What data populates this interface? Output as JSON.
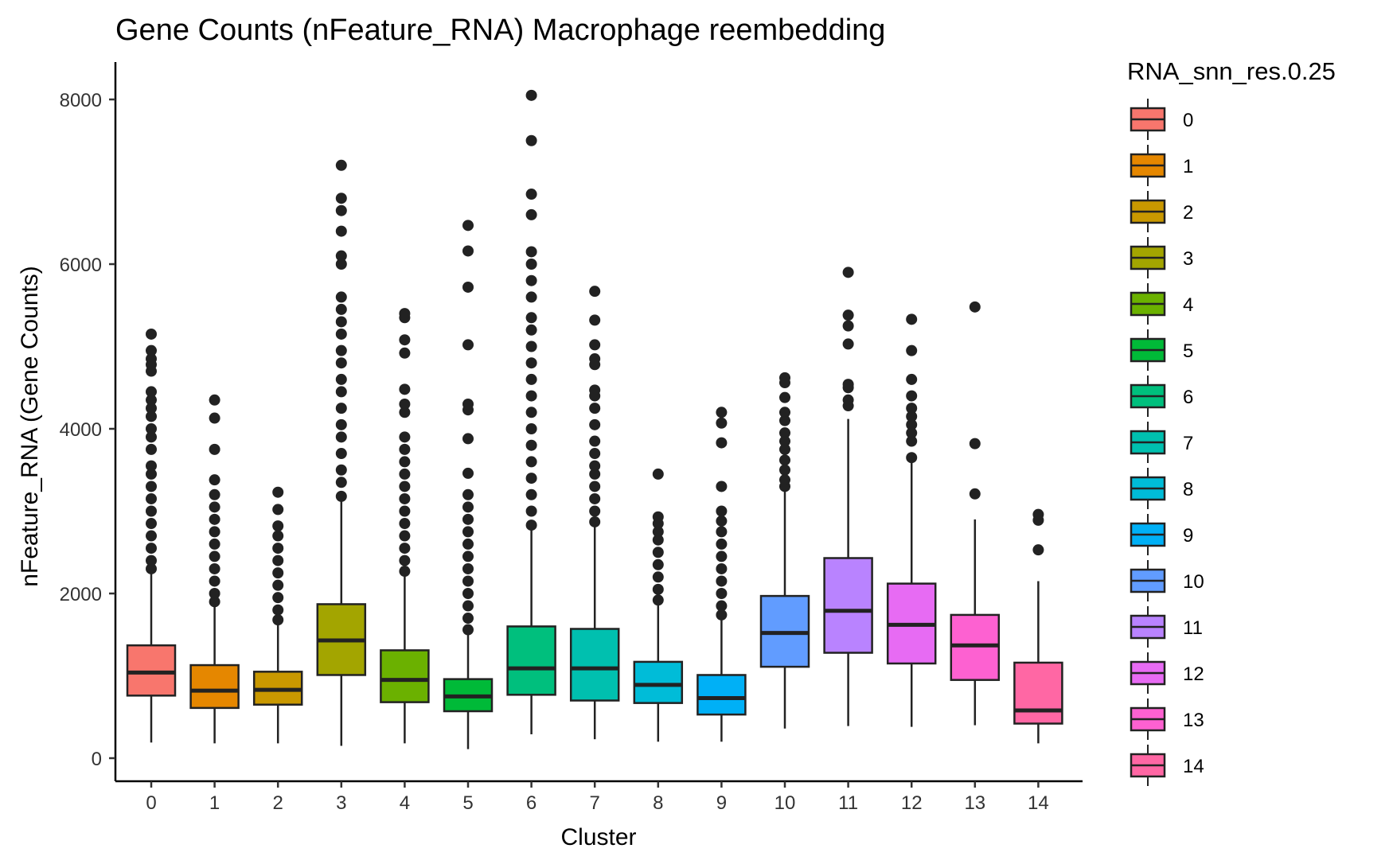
{
  "chart_data": {
    "type": "boxplot",
    "title": "Gene Counts (nFeature_RNA) Macrophage reembedding",
    "xlabel": "Cluster",
    "ylabel": "nFeature_RNA (Gene Counts)",
    "ylim": [
      -300,
      8400
    ],
    "yticks": [
      0,
      2000,
      4000,
      6000,
      8000
    ],
    "legend": {
      "title": "RNA_snn_res.0.25",
      "position": "right"
    },
    "grid": false,
    "categories": [
      "0",
      "1",
      "2",
      "3",
      "4",
      "5",
      "6",
      "7",
      "8",
      "9",
      "10",
      "11",
      "12",
      "13",
      "14"
    ],
    "colors": [
      "#F8766D",
      "#E58700",
      "#C99800",
      "#A3A500",
      "#6BB100",
      "#00BA38",
      "#00BF7D",
      "#00C0AF",
      "#00BCD8",
      "#00B0F6",
      "#619CFF",
      "#B983FF",
      "#E76BF3",
      "#FD61D1",
      "#FF67A4"
    ],
    "boxes": [
      {
        "cluster": "0",
        "lower_whisker": 190,
        "q1": 760,
        "median": 1040,
        "q3": 1370,
        "upper_whisker": 2280,
        "outliers": [
          2300,
          2400,
          2550,
          2700,
          2850,
          3000,
          3150,
          3300,
          3450,
          3550,
          3750,
          3900,
          4000,
          4150,
          4250,
          4350,
          4450,
          4700,
          4780,
          4850,
          4950,
          5150
        ]
      },
      {
        "cluster": "1",
        "lower_whisker": 180,
        "q1": 610,
        "median": 820,
        "q3": 1130,
        "upper_whisker": 1880,
        "outliers": [
          1900,
          2000,
          2150,
          2300,
          2450,
          2600,
          2750,
          2900,
          3050,
          3200,
          3380,
          3750,
          4130,
          4350
        ]
      },
      {
        "cluster": "2",
        "lower_whisker": 180,
        "q1": 650,
        "median": 830,
        "q3": 1050,
        "upper_whisker": 1650,
        "outliers": [
          1680,
          1800,
          1950,
          2100,
          2250,
          2400,
          2550,
          2700,
          2820,
          3020,
          3230
        ]
      },
      {
        "cluster": "3",
        "lower_whisker": 150,
        "q1": 1010,
        "median": 1430,
        "q3": 1870,
        "upper_whisker": 3150,
        "outliers": [
          3180,
          3350,
          3500,
          3700,
          3900,
          4050,
          4250,
          4450,
          4600,
          4800,
          4950,
          5150,
          5300,
          5450,
          5600,
          6000,
          6100,
          6400,
          6650,
          6800,
          7200
        ]
      },
      {
        "cluster": "4",
        "lower_whisker": 180,
        "q1": 680,
        "median": 950,
        "q3": 1310,
        "upper_whisker": 2250,
        "outliers": [
          2270,
          2400,
          2550,
          2700,
          2850,
          3000,
          3150,
          3300,
          3450,
          3600,
          3750,
          3900,
          4200,
          4300,
          4480,
          4920,
          5080,
          5350,
          5400
        ]
      },
      {
        "cluster": "5",
        "lower_whisker": 110,
        "q1": 570,
        "median": 750,
        "q3": 960,
        "upper_whisker": 1540,
        "outliers": [
          1560,
          1700,
          1850,
          2000,
          2150,
          2300,
          2450,
          2600,
          2750,
          2900,
          3050,
          3200,
          3460,
          3880,
          4230,
          4300,
          5020,
          5720,
          6160,
          6470
        ]
      },
      {
        "cluster": "6",
        "lower_whisker": 290,
        "q1": 770,
        "median": 1090,
        "q3": 1600,
        "upper_whisker": 2800,
        "outliers": [
          2830,
          3000,
          3200,
          3400,
          3600,
          3800,
          4000,
          4200,
          4400,
          4600,
          4800,
          5000,
          5200,
          5350,
          5600,
          5800,
          6000,
          6150,
          6600,
          6850,
          7500,
          8050
        ]
      },
      {
        "cluster": "7",
        "lower_whisker": 230,
        "q1": 700,
        "median": 1090,
        "q3": 1570,
        "upper_whisker": 2850,
        "outliers": [
          2870,
          3000,
          3150,
          3300,
          3450,
          3550,
          3700,
          3850,
          4050,
          4250,
          4400,
          4470,
          4780,
          4850,
          5020,
          5320,
          5670
        ]
      },
      {
        "cluster": "8",
        "lower_whisker": 200,
        "q1": 670,
        "median": 890,
        "q3": 1170,
        "upper_whisker": 1900,
        "outliers": [
          1920,
          2050,
          2200,
          2350,
          2500,
          2650,
          2750,
          2850,
          2930,
          3450
        ]
      },
      {
        "cluster": "9",
        "lower_whisker": 200,
        "q1": 530,
        "median": 730,
        "q3": 1010,
        "upper_whisker": 1720,
        "outliers": [
          1740,
          1850,
          2000,
          2150,
          2300,
          2450,
          2600,
          2750,
          2880,
          3000,
          3300,
          3830,
          4070,
          4200
        ]
      },
      {
        "cluster": "10",
        "lower_whisker": 360,
        "q1": 1110,
        "median": 1520,
        "q3": 1970,
        "upper_whisker": 3250,
        "outliers": [
          3300,
          3380,
          3500,
          3620,
          3750,
          3850,
          3950,
          4100,
          4200,
          4380,
          4560,
          4620
        ]
      },
      {
        "cluster": "11",
        "lower_whisker": 390,
        "q1": 1280,
        "median": 1790,
        "q3": 2430,
        "upper_whisker": 4120,
        "outliers": [
          4280,
          4350,
          4500,
          4540,
          5030,
          5250,
          5380,
          5900
        ]
      },
      {
        "cluster": "12",
        "lower_whisker": 380,
        "q1": 1150,
        "median": 1620,
        "q3": 2120,
        "upper_whisker": 3600,
        "outliers": [
          3650,
          3850,
          3950,
          4050,
          4150,
          4250,
          4400,
          4600,
          4950,
          5330
        ]
      },
      {
        "cluster": "13",
        "lower_whisker": 400,
        "q1": 950,
        "median": 1370,
        "q3": 1740,
        "upper_whisker": 2900,
        "outliers": [
          3210,
          3820,
          5480
        ]
      },
      {
        "cluster": "14",
        "lower_whisker": 180,
        "q1": 420,
        "median": 580,
        "q3": 1160,
        "upper_whisker": 2150,
        "outliers": [
          2530,
          2890,
          2960
        ]
      }
    ]
  }
}
